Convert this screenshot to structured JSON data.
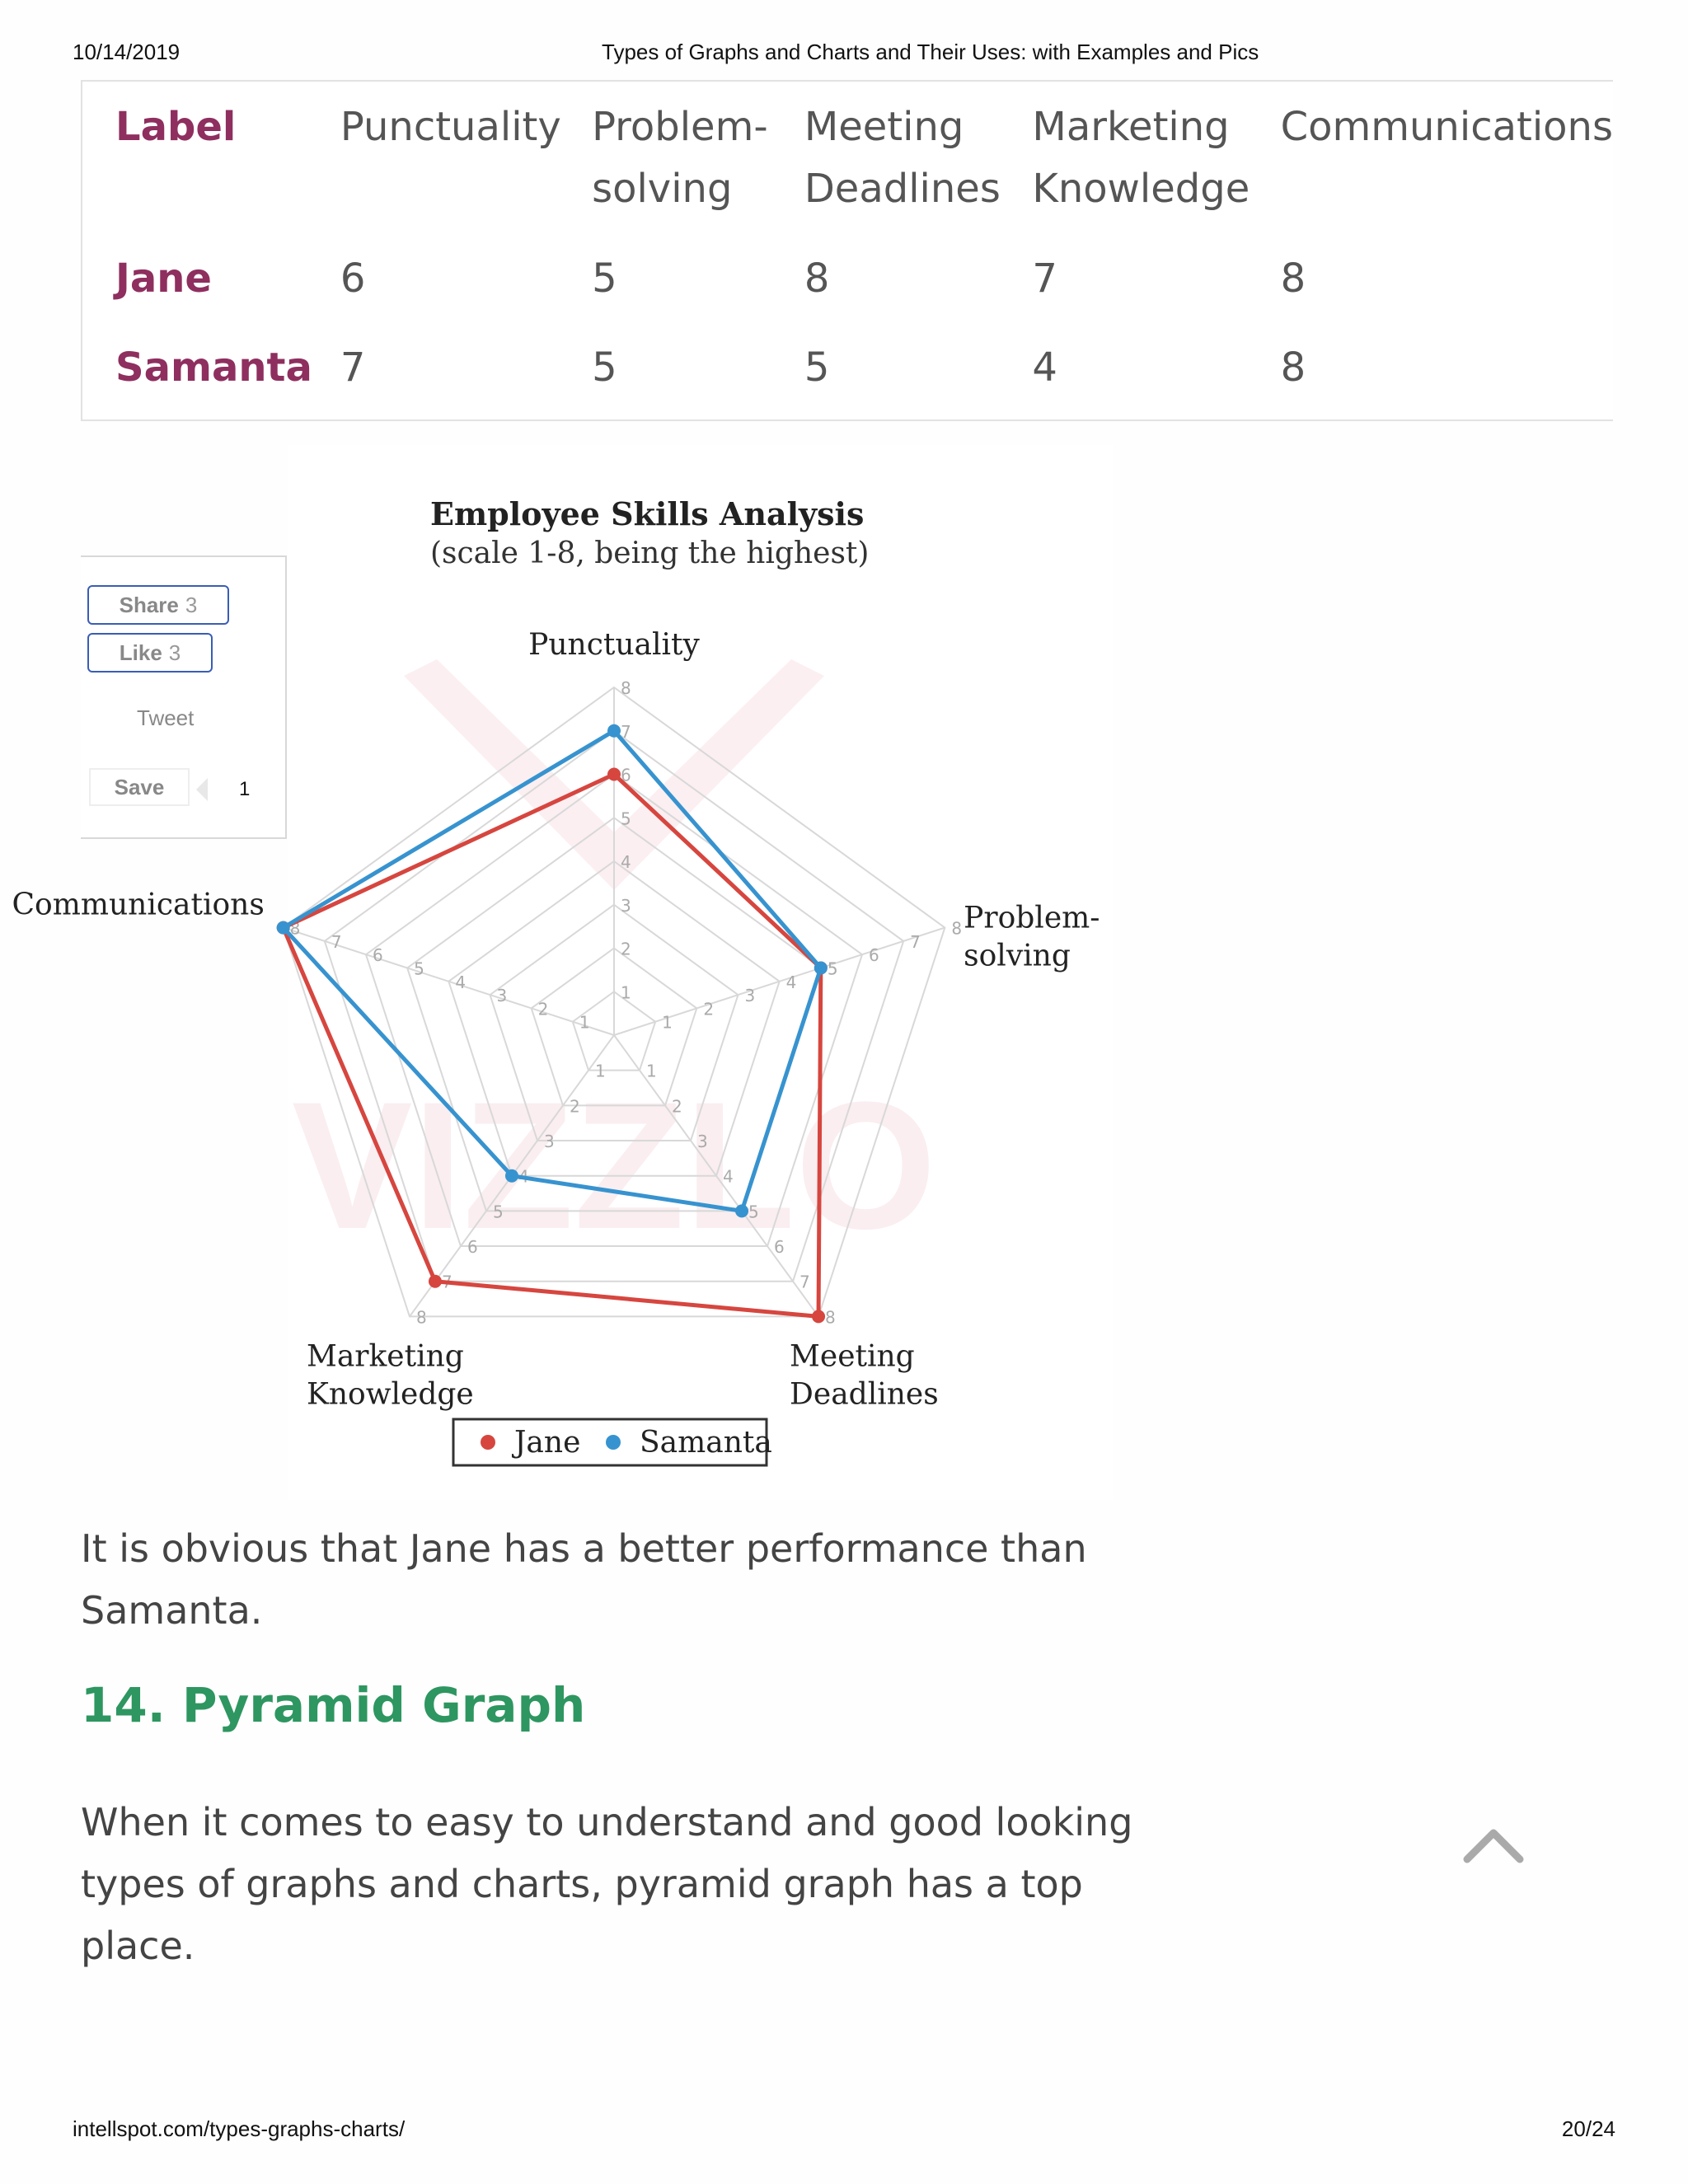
{
  "print_header": {
    "date": "10/14/2019",
    "title": "Types of Graphs and Charts and Their Uses: with Examples and Pics"
  },
  "print_footer": {
    "url": "intellspot.com/types-graphs-charts/",
    "page": "20/24"
  },
  "table": {
    "header": [
      "Label",
      "Punctuality",
      "Problem-\nsolving",
      "Meeting\nDeadlines",
      "Marketing\nKnowledge",
      "Communications"
    ],
    "rows": [
      [
        "Jane",
        "6",
        "5",
        "8",
        "7",
        "8"
      ],
      [
        "Samanta",
        "7",
        "5",
        "5",
        "4",
        "8"
      ]
    ]
  },
  "chart_data": {
    "type": "radar",
    "title": "Employee Skills Analysis",
    "subtitle": "(scale 1-8, being the highest)",
    "axes": [
      "Punctuality",
      "Problem-\nsolving",
      "Meeting\nDeadlines",
      "Marketing\nKnowledge",
      "Communications"
    ],
    "range": [
      0,
      8
    ],
    "ticks": [
      1,
      2,
      3,
      4,
      5,
      6,
      7,
      8
    ],
    "grid": true,
    "legend": "bottom",
    "series": [
      {
        "name": "Jane",
        "color": "#d6463f",
        "values": [
          6,
          5,
          8,
          7,
          8
        ]
      },
      {
        "name": "Samanta",
        "color": "#3793cf",
        "values": [
          7,
          5,
          5,
          4,
          8
        ]
      }
    ],
    "watermark": "VIZZLO"
  },
  "share": {
    "share_label": "Share",
    "share_count": "3",
    "like_label": "Like",
    "like_count": "3",
    "tweet_label": "Tweet",
    "save_label": "Save",
    "save_count": "1"
  },
  "body": {
    "para1": "It is obvious that Jane has a better performance than Samanta.",
    "heading": "14. Pyramid Graph",
    "para2": "When it comes to easy to understand and good looking types of graphs and charts, pyramid graph has a top place."
  },
  "icons": {
    "scroll_top": "chevron-up-icon"
  }
}
